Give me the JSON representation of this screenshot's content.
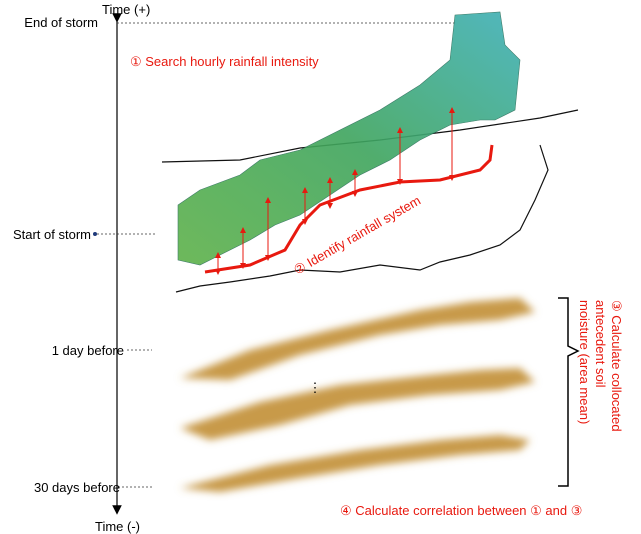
{
  "axis": {
    "top_label": "Time (+)",
    "bottom_label": "Time (-)"
  },
  "time_marks": [
    "End of storm",
    "Start of storm",
    "1 day before",
    "30 days before"
  ],
  "steps": [
    {
      "text": "① Search hourly rainfall intensity"
    },
    {
      "text": "② Identify rainfall system"
    },
    {
      "lines": [
        "③ Calculate collocated",
        "antecedent soil",
        "moisture (area mean)"
      ]
    },
    {
      "text": "④ Calculate correlation between ① and ③"
    }
  ],
  "ellipsis": "⋮"
}
